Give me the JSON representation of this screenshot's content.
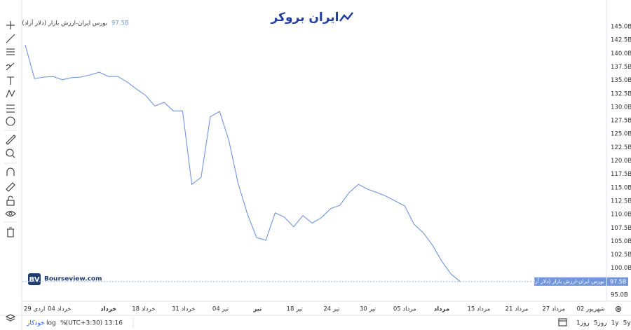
{
  "chart_data": {
    "type": "line",
    "logo": "ایران بروکر",
    "watermark": "Bourseview.com",
    "series": [
      {
        "name": "بورس ایران-ارزش بازار (دلار آزاد)",
        "color": "#7196dc",
        "values": [
          141.6,
          135.3,
          135.6,
          135.7,
          135.1,
          135.5,
          135.6,
          136.0,
          136.5,
          135.7,
          135.7,
          134.7,
          133.4,
          132.2,
          130.2,
          130.9,
          129.3,
          129.3,
          115.6,
          116.9,
          128.2,
          129.2,
          123.8,
          115.8,
          110.1,
          105.7,
          105.2,
          110.3,
          109.5,
          107.7,
          109.8,
          108.4,
          109.4,
          111.1,
          111.7,
          114.1,
          115.6,
          114.7,
          114.1,
          113.4,
          112.5,
          111.6,
          108.2,
          106.6,
          104.3,
          101.3,
          98.9,
          97.5
        ]
      }
    ],
    "last_value": 97.5,
    "last_value_label": "97.5B",
    "ylim": [
      95,
      145
    ],
    "yticks": [
      {
        "value": 95,
        "label": "95.0B"
      },
      {
        "value": 97.5,
        "label": "97.5B"
      },
      {
        "value": 100,
        "label": "100.0B"
      },
      {
        "value": 102.5,
        "label": "102.5B"
      },
      {
        "value": 105,
        "label": "105.0B"
      },
      {
        "value": 107.5,
        "label": "107.5B"
      },
      {
        "value": 110,
        "label": "110.0B"
      },
      {
        "value": 112.5,
        "label": "112.5B"
      },
      {
        "value": 115,
        "label": "115.0B"
      },
      {
        "value": 117.5,
        "label": "117.5B"
      },
      {
        "value": 120,
        "label": "120.0B"
      },
      {
        "value": 122.5,
        "label": "122.5B"
      },
      {
        "value": 125,
        "label": "125.0B"
      },
      {
        "value": 127.5,
        "label": "127.5B"
      },
      {
        "value": 130,
        "label": "130.0B"
      },
      {
        "value": 132.5,
        "label": "132.5B"
      },
      {
        "value": 135,
        "label": "135.0B"
      },
      {
        "value": 137.5,
        "label": "137.5B"
      },
      {
        "value": 140,
        "label": "140.0B"
      },
      {
        "value": 142.5,
        "label": "142.5B"
      },
      {
        "value": 145,
        "label": "145.0B"
      }
    ],
    "xlim": [
      -0.3,
      62.8
    ],
    "xticks": [
      {
        "value": 1,
        "label": "29 اردی"
      },
      {
        "value": 3.7,
        "label": "04 خرداد"
      },
      {
        "value": 9,
        "label": "خرداد"
      },
      {
        "value": 12.8,
        "label": "18 خرداد"
      },
      {
        "value": 17.1,
        "label": "31 خرداد"
      },
      {
        "value": 21.1,
        "label": "04 تیر"
      },
      {
        "value": 25.1,
        "label": "تیر"
      },
      {
        "value": 29.1,
        "label": "18 تیر"
      },
      {
        "value": 33.1,
        "label": "24 تیر"
      },
      {
        "value": 37,
        "label": "30 تیر"
      },
      {
        "value": 41,
        "label": "05 مرداد"
      },
      {
        "value": 45,
        "label": "مرداد"
      },
      {
        "value": 49,
        "label": "15 مرداد"
      },
      {
        "value": 53.1,
        "label": "21 مرداد"
      },
      {
        "value": 57.1,
        "label": "27 مرداد"
      },
      {
        "value": 61.1,
        "label": "02 شهریور"
      }
    ],
    "grid": false,
    "range_buttons": [
      "1روز",
      "5روز",
      "1y",
      "5y"
    ],
    "clock": "(UTC+3:30) 13:16",
    "scale_buttons": [
      "%",
      "log",
      "خودکار"
    ]
  }
}
